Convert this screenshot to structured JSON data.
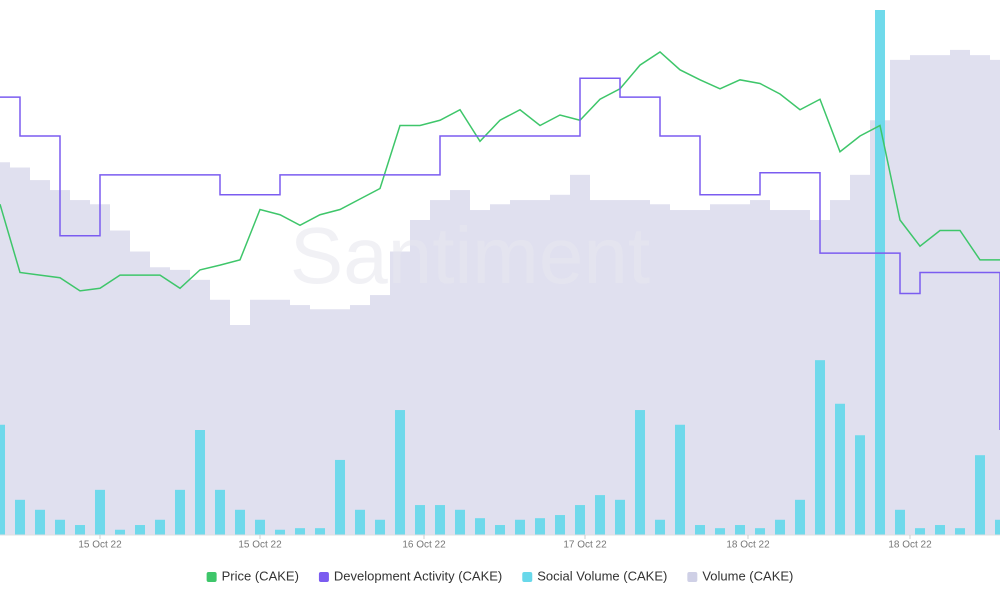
{
  "chart_data": {
    "type": "line",
    "watermark": "Santiment",
    "x": [
      0,
      2,
      4,
      6,
      8,
      10,
      12,
      14,
      16,
      18,
      20,
      22,
      24,
      26,
      28,
      30,
      32,
      34,
      36,
      38,
      40,
      42,
      44,
      46,
      48,
      50,
      52,
      54,
      56,
      58,
      60,
      62,
      64,
      66,
      68,
      70,
      72,
      74,
      76,
      78,
      80,
      82,
      84,
      86,
      88,
      90,
      92,
      94,
      96,
      98,
      100
    ],
    "xlim": [
      0,
      100
    ],
    "xticks": [
      {
        "value": 10,
        "label": "15 Oct 22"
      },
      {
        "value": 26,
        "label": "15 Oct 22"
      },
      {
        "value": 42.4,
        "label": "16 Oct 22"
      },
      {
        "value": 58.5,
        "label": "17 Oct 22"
      },
      {
        "value": 74.8,
        "label": "18 Oct 22"
      },
      {
        "value": 91,
        "label": "18 Oct 22"
      }
    ],
    "ylim": [
      0,
      100
    ],
    "legend": "bottom",
    "series": [
      {
        "name": "Volume (CAKE)",
        "color": "#dadbec",
        "style": "bars",
        "values": [
          71,
          70,
          67.6,
          65.7,
          63.8,
          63,
          58,
          54,
          51,
          50.5,
          48.6,
          44.8,
          40,
          44.8,
          44.8,
          43.8,
          43,
          43,
          43.8,
          45.7,
          54,
          60,
          63.8,
          65.7,
          61.9,
          63,
          63.8,
          63.8,
          64.8,
          68.6,
          63.8,
          63.8,
          63.8,
          63,
          61.9,
          61.9,
          63,
          63,
          63.8,
          61.9,
          61.9,
          60,
          63.8,
          68.6,
          79,
          90.5,
          91.4,
          91.4,
          92.4,
          91.4,
          90.5
        ]
      },
      {
        "name": "Social Volume (CAKE)",
        "color": "#68d8ea",
        "style": "bars",
        "values": [
          21,
          6.7,
          4.8,
          2.9,
          1.9,
          8.6,
          1,
          1.9,
          2.9,
          8.6,
          20,
          8.6,
          4.8,
          2.9,
          1,
          1.3,
          1.3,
          14.3,
          4.8,
          2.9,
          23.8,
          5.7,
          5.7,
          4.8,
          3.2,
          1.9,
          2.9,
          3.2,
          3.8,
          5.7,
          7.6,
          6.7,
          23.8,
          2.9,
          21,
          1.9,
          1.3,
          1.9,
          1.3,
          2.9,
          6.7,
          33.3,
          25,
          19,
          100,
          4.8,
          1.3,
          1.9,
          1.3,
          15.2,
          2.9
        ]
      },
      {
        "name": "Price (CAKE)",
        "color": "#3ec66a",
        "style": "line",
        "values": [
          63,
          50,
          49.5,
          49,
          46.5,
          47,
          49.5,
          49.5,
          49.5,
          47,
          50.5,
          51.4,
          52.4,
          62,
          61,
          59,
          61,
          62,
          64,
          66,
          78,
          78,
          79,
          81,
          75,
          79,
          81,
          78,
          80,
          79,
          83,
          85,
          89.5,
          92,
          88.6,
          86.7,
          85,
          86.7,
          86,
          84,
          81,
          83,
          73,
          76,
          78,
          60,
          55,
          58,
          58,
          52.4,
          52.4
        ]
      },
      {
        "name": "Development Activity (CAKE)",
        "color": "#7b5cf0",
        "style": "step",
        "values": [
          83.4,
          76,
          76,
          57,
          57,
          68.6,
          68.6,
          68.6,
          68.6,
          68.6,
          68.6,
          64.8,
          64.8,
          64.8,
          68.6,
          68.6,
          68.6,
          68.6,
          68.6,
          68.6,
          68.6,
          68.6,
          76,
          76,
          76,
          76,
          76,
          76,
          76,
          87,
          87,
          83.4,
          83.4,
          76,
          76,
          64.8,
          64.8,
          64.8,
          69,
          69,
          69,
          53.7,
          53.7,
          53.7,
          53.7,
          46,
          50,
          50,
          50,
          50,
          20
        ]
      }
    ],
    "legend_order": [
      2,
      3,
      1,
      0
    ]
  }
}
